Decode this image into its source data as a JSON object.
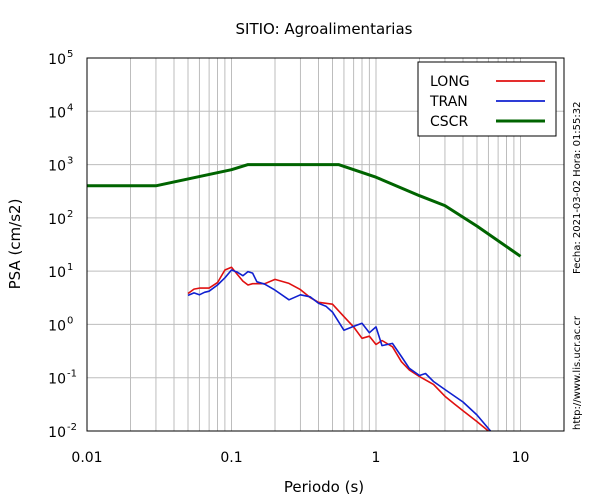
{
  "chart_data": {
    "type": "line",
    "title": "SITIO: Agroalimentarias",
    "xlabel": "Periodo (s)",
    "ylabel": "PSA (cm/s2)",
    "x_scale": "log",
    "y_scale": "log",
    "xlim": [
      0.01,
      20
    ],
    "ylim": [
      0.01,
      100000
    ],
    "x_ticks": [
      {
        "value": 0.01,
        "label": "0.01"
      },
      {
        "value": 0.1,
        "label": "0.1"
      },
      {
        "value": 1,
        "label": "1"
      },
      {
        "value": 10,
        "label": "10"
      }
    ],
    "y_ticks": [
      {
        "value": 0.01,
        "base": "10",
        "exp": "-2"
      },
      {
        "value": 0.1,
        "base": "10",
        "exp": "-1"
      },
      {
        "value": 1,
        "base": "10",
        "exp": "0"
      },
      {
        "value": 10,
        "base": "10",
        "exp": "1"
      },
      {
        "value": 100,
        "base": "10",
        "exp": "2"
      },
      {
        "value": 1000,
        "base": "10",
        "exp": "3"
      },
      {
        "value": 10000,
        "base": "10",
        "exp": "4"
      },
      {
        "value": 100000,
        "base": "10",
        "exp": "5"
      }
    ],
    "grid": true,
    "legend_position": "top-right",
    "series": [
      {
        "name": "LONG",
        "color": "#e01010",
        "x": [
          0.05,
          0.055,
          0.06,
          0.07,
          0.08,
          0.09,
          0.1,
          0.11,
          0.12,
          0.13,
          0.14,
          0.15,
          0.17,
          0.2,
          0.25,
          0.3,
          0.35,
          0.4,
          0.5,
          0.6,
          0.7,
          0.8,
          0.9,
          1.0,
          1.1,
          1.3,
          1.5,
          1.7,
          2.0,
          2.5,
          3.0,
          3.5,
          4.0,
          5.0,
          6.0
        ],
        "y": [
          3.8,
          4.6,
          4.8,
          4.8,
          6.1,
          10.5,
          11.8,
          8.6,
          6.5,
          5.5,
          5.8,
          5.8,
          5.8,
          7.0,
          5.9,
          4.5,
          3.2,
          2.6,
          2.4,
          1.4,
          0.9,
          0.55,
          0.6,
          0.42,
          0.5,
          0.38,
          0.2,
          0.14,
          0.105,
          0.075,
          0.045,
          0.032,
          0.024,
          0.015,
          0.01
        ]
      },
      {
        "name": "TRAN",
        "color": "#1020d0",
        "x": [
          0.05,
          0.055,
          0.06,
          0.065,
          0.07,
          0.08,
          0.09,
          0.1,
          0.11,
          0.12,
          0.13,
          0.14,
          0.15,
          0.17,
          0.2,
          0.25,
          0.3,
          0.35,
          0.4,
          0.45,
          0.5,
          0.6,
          0.7,
          0.8,
          0.9,
          1.0,
          1.1,
          1.3,
          1.5,
          1.7,
          2.0,
          2.2,
          2.5,
          3.0,
          4.0,
          5.0,
          6.2
        ],
        "y": [
          3.5,
          3.9,
          3.6,
          4.0,
          4.2,
          5.5,
          7.5,
          10.5,
          9.5,
          8.2,
          9.8,
          9.2,
          6.3,
          5.7,
          4.4,
          2.9,
          3.6,
          3.3,
          2.5,
          2.2,
          1.7,
          0.78,
          0.92,
          1.05,
          0.7,
          0.9,
          0.4,
          0.44,
          0.25,
          0.15,
          0.11,
          0.12,
          0.085,
          0.06,
          0.035,
          0.02,
          0.01
        ]
      },
      {
        "name": "CSCR",
        "color": "#006400",
        "x": [
          0.01,
          0.03,
          0.1,
          0.13,
          0.55,
          1.0,
          2.0,
          3.0,
          5.0,
          10.0
        ],
        "y": [
          400,
          400,
          800,
          1000,
          1000,
          580,
          260,
          170,
          70,
          19
        ]
      }
    ]
  },
  "side_text_date": "Fecha: 2021-03-02  Hora: 01:55:32",
  "side_text_url": "http://www.lis.ucr.ac.cr"
}
